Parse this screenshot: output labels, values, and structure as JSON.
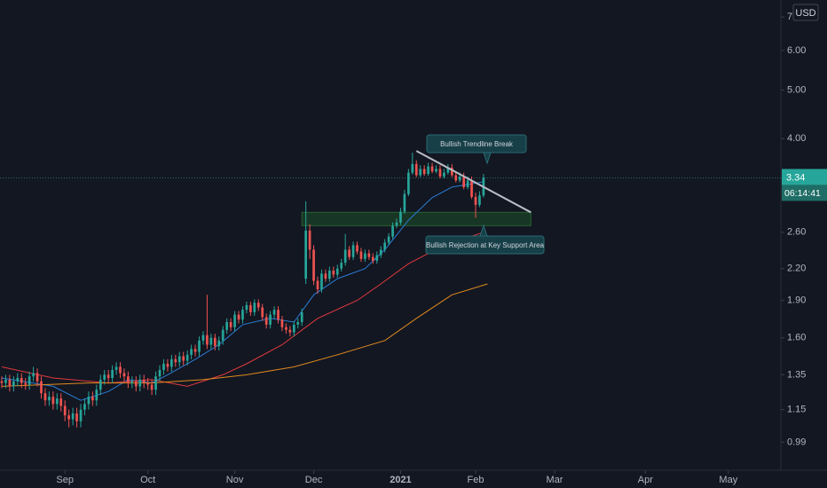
{
  "chart_data": {
    "type": "candlestick",
    "currency": "USD",
    "countdown": "06:14:41",
    "log_scale": true,
    "up_color": "#26a69a",
    "down_color": "#ef5350",
    "open": [
      1.31,
      1.3,
      1.32,
      1.28,
      1.31,
      1.33,
      1.3,
      1.29,
      1.34,
      1.36,
      1.31,
      1.24,
      1.2,
      1.22,
      1.18,
      1.21,
      1.17,
      1.12,
      1.1,
      1.13,
      1.09,
      1.15,
      1.18,
      1.22,
      1.2,
      1.26,
      1.32,
      1.35,
      1.33,
      1.38,
      1.4,
      1.36,
      1.34,
      1.3,
      1.31,
      1.28,
      1.32,
      1.3,
      1.29,
      1.26,
      1.34,
      1.38,
      1.42,
      1.4,
      1.45,
      1.43,
      1.47,
      1.44,
      1.48,
      1.52,
      1.5,
      1.58,
      1.62,
      1.55,
      1.6,
      1.54,
      1.58,
      1.66,
      1.72,
      1.68,
      1.78,
      1.74,
      1.82,
      1.86,
      1.8,
      1.88,
      1.84,
      1.76,
      1.7,
      1.78,
      1.82,
      1.74,
      1.68,
      1.66,
      1.64,
      1.7,
      1.72,
      2.1,
      2.62,
      2.4,
      2.08,
      2.0,
      2.15,
      2.1,
      2.18,
      2.14,
      2.2,
      2.26,
      2.4,
      2.32,
      2.45,
      2.38,
      2.3,
      2.36,
      2.32,
      2.28,
      2.34,
      2.4,
      2.48,
      2.55,
      2.68,
      2.72,
      2.86,
      3.1,
      3.42,
      3.56,
      3.38,
      3.48,
      3.4,
      3.52,
      3.44,
      3.48,
      3.36,
      3.42,
      3.5,
      3.38,
      3.3,
      3.36,
      3.2,
      3.3,
      3.06,
      2.95,
      3.08
    ],
    "high": [
      1.34,
      1.35,
      1.35,
      1.34,
      1.36,
      1.36,
      1.33,
      1.37,
      1.4,
      1.39,
      1.34,
      1.27,
      1.25,
      1.25,
      1.24,
      1.24,
      1.2,
      1.15,
      1.16,
      1.16,
      1.18,
      1.21,
      1.25,
      1.25,
      1.29,
      1.35,
      1.38,
      1.38,
      1.41,
      1.43,
      1.43,
      1.39,
      1.37,
      1.34,
      1.34,
      1.35,
      1.35,
      1.33,
      1.32,
      1.37,
      1.41,
      1.45,
      1.45,
      1.48,
      1.48,
      1.5,
      1.5,
      1.51,
      1.55,
      1.55,
      1.61,
      1.65,
      1.95,
      1.63,
      1.63,
      1.61,
      1.69,
      1.75,
      1.75,
      1.81,
      1.81,
      1.85,
      1.89,
      1.89,
      1.91,
      1.91,
      1.87,
      1.79,
      1.81,
      1.85,
      1.85,
      1.77,
      1.71,
      1.69,
      1.73,
      1.75,
      1.83,
      3.0,
      2.7,
      2.45,
      2.12,
      2.19,
      2.19,
      2.22,
      2.22,
      2.24,
      2.3,
      2.58,
      2.44,
      2.49,
      2.49,
      2.42,
      2.4,
      2.4,
      2.36,
      2.38,
      2.44,
      2.52,
      2.59,
      2.72,
      2.77,
      2.91,
      3.16,
      3.48,
      3.75,
      3.62,
      3.54,
      3.54,
      3.58,
      3.58,
      3.54,
      3.54,
      3.48,
      3.56,
      3.56,
      3.44,
      3.42,
      3.42,
      3.36,
      3.36,
      3.12,
      3.14,
      3.4
    ],
    "low": [
      1.27,
      1.27,
      1.25,
      1.25,
      1.28,
      1.27,
      1.26,
      1.26,
      1.31,
      1.28,
      1.21,
      1.17,
      1.17,
      1.15,
      1.15,
      1.14,
      1.09,
      1.06,
      1.07,
      1.06,
      1.06,
      1.12,
      1.15,
      1.17,
      1.17,
      1.23,
      1.29,
      1.3,
      1.3,
      1.35,
      1.33,
      1.31,
      1.27,
      1.27,
      1.25,
      1.25,
      1.27,
      1.26,
      1.23,
      1.23,
      1.31,
      1.35,
      1.37,
      1.37,
      1.4,
      1.4,
      1.41,
      1.41,
      1.45,
      1.47,
      1.47,
      1.55,
      1.52,
      1.52,
      1.51,
      1.51,
      1.55,
      1.63,
      1.65,
      1.65,
      1.71,
      1.71,
      1.79,
      1.77,
      1.77,
      1.81,
      1.73,
      1.67,
      1.67,
      1.75,
      1.71,
      1.65,
      1.63,
      1.61,
      1.61,
      1.67,
      1.69,
      2.05,
      2.3,
      2.04,
      1.96,
      1.97,
      2.07,
      2.07,
      2.11,
      2.11,
      2.17,
      2.23,
      2.29,
      2.29,
      2.35,
      2.27,
      2.27,
      2.29,
      2.25,
      2.25,
      2.31,
      2.37,
      2.45,
      2.52,
      2.65,
      2.69,
      2.83,
      3.07,
      3.39,
      3.35,
      3.35,
      3.37,
      3.37,
      3.41,
      3.41,
      3.33,
      3.33,
      3.39,
      3.35,
      3.27,
      3.27,
      3.17,
      3.17,
      3.03,
      2.78,
      2.92,
      3.05
    ],
    "close": [
      1.3,
      1.32,
      1.28,
      1.31,
      1.33,
      1.3,
      1.29,
      1.34,
      1.36,
      1.31,
      1.24,
      1.2,
      1.22,
      1.18,
      1.21,
      1.17,
      1.12,
      1.1,
      1.13,
      1.09,
      1.15,
      1.18,
      1.22,
      1.2,
      1.26,
      1.32,
      1.35,
      1.33,
      1.38,
      1.4,
      1.36,
      1.34,
      1.3,
      1.31,
      1.28,
      1.32,
      1.3,
      1.29,
      1.26,
      1.34,
      1.38,
      1.42,
      1.4,
      1.45,
      1.43,
      1.47,
      1.44,
      1.48,
      1.52,
      1.5,
      1.58,
      1.62,
      1.55,
      1.6,
      1.54,
      1.58,
      1.66,
      1.72,
      1.68,
      1.78,
      1.74,
      1.82,
      1.86,
      1.8,
      1.88,
      1.84,
      1.76,
      1.7,
      1.78,
      1.82,
      1.74,
      1.68,
      1.66,
      1.64,
      1.7,
      1.72,
      1.8,
      2.62,
      2.4,
      2.08,
      2.0,
      2.15,
      2.1,
      2.18,
      2.14,
      2.2,
      2.26,
      2.4,
      2.32,
      2.45,
      2.38,
      2.3,
      2.36,
      2.32,
      2.28,
      2.34,
      2.4,
      2.48,
      2.55,
      2.68,
      2.72,
      2.86,
      3.1,
      3.42,
      3.56,
      3.38,
      3.48,
      3.4,
      3.52,
      3.44,
      3.48,
      3.36,
      3.42,
      3.5,
      3.38,
      3.3,
      3.36,
      3.2,
      3.3,
      3.06,
      2.95,
      3.08,
      3.34
    ],
    "lines": [
      {
        "color": "#2a7bd4",
        "x": [
          0,
          13,
          20,
          27,
          32,
          38,
          42,
          49,
          55,
          61,
          68,
          74,
          79,
          85,
          92,
          97,
          103,
          109,
          114,
          119,
          122
        ],
        "values": [
          1.33,
          1.28,
          1.2,
          1.25,
          1.32,
          1.3,
          1.35,
          1.45,
          1.55,
          1.7,
          1.75,
          1.72,
          1.95,
          2.1,
          2.2,
          2.4,
          2.75,
          3.05,
          3.2,
          3.25,
          3.28
        ]
      },
      {
        "color": "#e0393e",
        "x": [
          0,
          13,
          27,
          38,
          47,
          56,
          62,
          71,
          80,
          90,
          96,
          103,
          112,
          122
        ],
        "values": [
          1.4,
          1.33,
          1.3,
          1.32,
          1.28,
          1.35,
          1.42,
          1.55,
          1.75,
          1.9,
          2.05,
          2.25,
          2.45,
          2.6
        ]
      },
      {
        "color": "#e08a1e",
        "x": [
          0,
          22,
          38,
          51,
          62,
          74,
          85,
          97,
          105,
          114,
          123
        ],
        "values": [
          1.28,
          1.3,
          1.3,
          1.32,
          1.35,
          1.4,
          1.48,
          1.58,
          1.75,
          1.95,
          2.05
        ]
      }
    ],
    "zone": {
      "color": "#1e5e2a",
      "x": [
        76,
        134
      ],
      "values": [
        2.68,
        2.85
      ]
    },
    "trendline": {
      "color": "#b8bcc6",
      "x": [
        105,
        134
      ],
      "values": [
        3.78,
        2.85
      ]
    },
    "annotations": [
      "Bullish Trendline Break",
      "Bullish Rejection at Key Support Area"
    ],
    "xlim": [
      -0.45,
      197.3
    ],
    "xticks": [
      {
        "value": 16,
        "label": "Sep"
      },
      {
        "value": 37,
        "label": "Oct"
      },
      {
        "value": 59,
        "label": "Nov"
      },
      {
        "value": 79,
        "label": "Dec"
      },
      {
        "value": 101,
        "label": "2021"
      },
      {
        "value": 120,
        "label": "Feb"
      },
      {
        "value": 140,
        "label": "Mar"
      },
      {
        "value": 163,
        "label": "Apr"
      },
      {
        "value": 184,
        "label": "May"
      }
    ],
    "ylim": [
      0.87,
      7.57
    ],
    "yticks": [
      0.99,
      1.15,
      1.35,
      {
        "value": 1.6,
        "label": "1.60"
      },
      {
        "value": 1.9,
        "label": "1.90"
      },
      {
        "value": 2.2,
        "label": "2.20"
      },
      {
        "value": 2.6,
        "label": "2.60"
      },
      {
        "value": 4,
        "label": "4.00"
      },
      {
        "value": 5,
        "label": "5.00"
      },
      {
        "value": 6,
        "label": "6.00"
      },
      {
        "value": 7,
        "label": "7.00"
      }
    ]
  }
}
